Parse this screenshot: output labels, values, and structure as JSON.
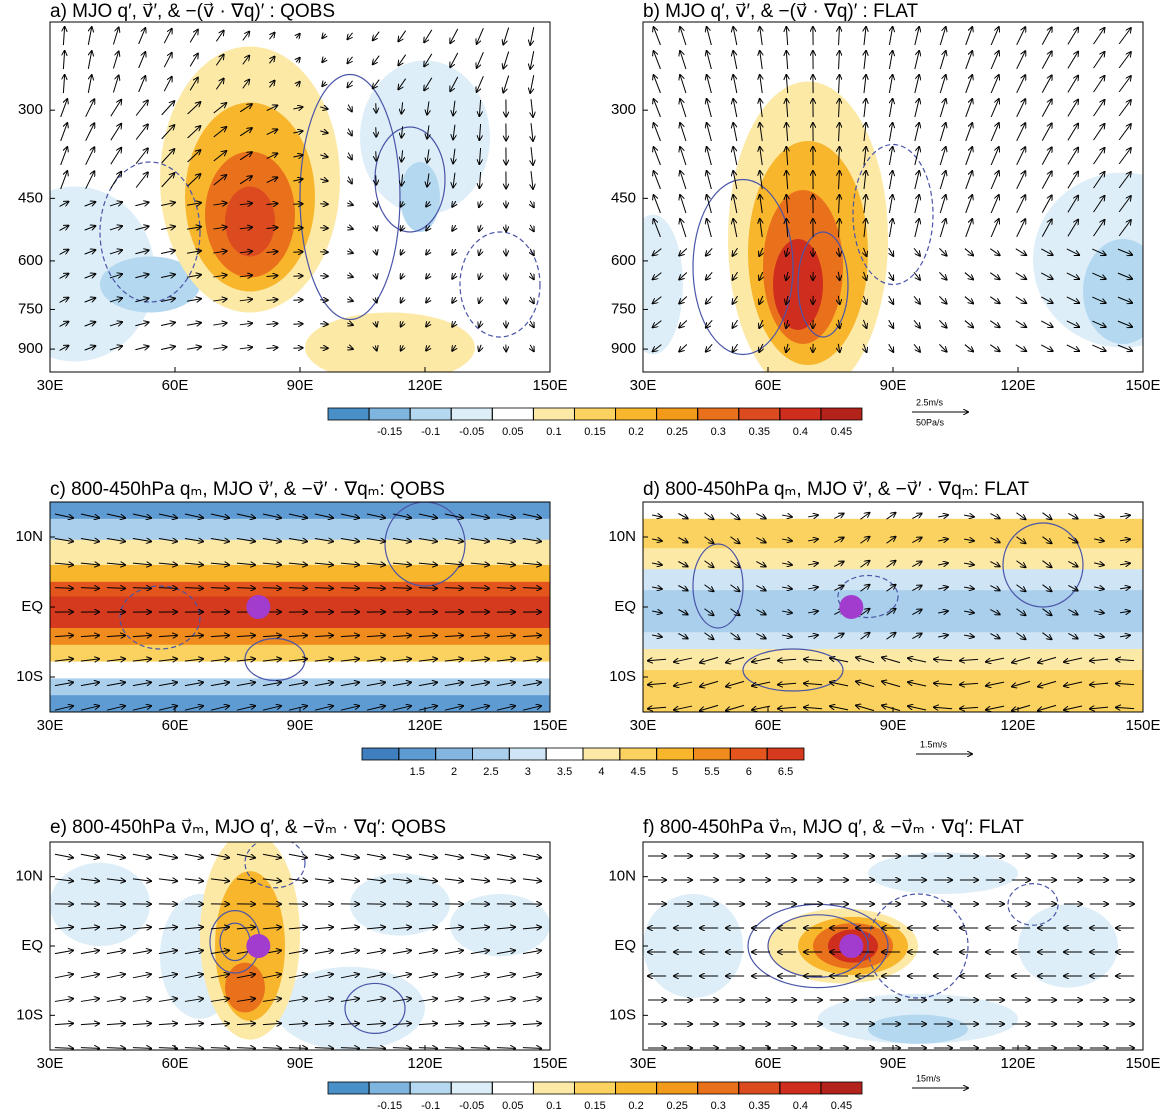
{
  "panels": [
    {
      "title": "a) MJO q′, v⃗′, & −(v⃗ · ∇q)′ : QOBS",
      "xlim": [
        30,
        150
      ],
      "xticks": [
        {
          "value": 30,
          "label": "30E"
        },
        {
          "value": 60,
          "label": "60E"
        },
        {
          "value": 90,
          "label": "90E"
        },
        {
          "value": 120,
          "label": "120E"
        },
        {
          "value": 150,
          "label": "150E"
        }
      ],
      "ylim": [
        1000,
        200
      ],
      "y_scale": "log",
      "yticks": [
        300,
        450,
        600,
        750,
        900
      ]
    },
    {
      "title": "b) MJO q′, v⃗′, & −(v⃗ · ∇q)′ : FLAT",
      "xlim": [
        30,
        150
      ],
      "xticks": [
        {
          "value": 30,
          "label": "30E"
        },
        {
          "value": 60,
          "label": "60E"
        },
        {
          "value": 90,
          "label": "90E"
        },
        {
          "value": 120,
          "label": "120E"
        },
        {
          "value": 150,
          "label": "150E"
        }
      ],
      "ylim": [
        1000,
        200
      ],
      "y_scale": "log",
      "yticks": [
        300,
        450,
        600,
        750,
        900
      ]
    },
    {
      "title": "c) 800-450hPa qₘ, MJO v⃗′, & −v⃗′ · ∇qₘ: QOBS",
      "xlim": [
        30,
        150
      ],
      "xticks": [
        {
          "value": 30,
          "label": "30E"
        },
        {
          "value": 60,
          "label": "60E"
        },
        {
          "value": 90,
          "label": "90E"
        },
        {
          "value": 120,
          "label": "120E"
        },
        {
          "value": 150,
          "label": "150E"
        }
      ],
      "ylim": [
        -15,
        15
      ],
      "y_scale": "linear",
      "yticks": [
        {
          "value": 10,
          "label": "10N"
        },
        {
          "value": 0,
          "label": "EQ"
        },
        {
          "value": -10,
          "label": "10S"
        }
      ]
    },
    {
      "title": "d) 800-450hPa qₘ, MJO v⃗′, & −v⃗′ · ∇qₘ: FLAT",
      "xlim": [
        30,
        150
      ],
      "xticks": [
        {
          "value": 30,
          "label": "30E"
        },
        {
          "value": 60,
          "label": "60E"
        },
        {
          "value": 90,
          "label": "90E"
        },
        {
          "value": 120,
          "label": "120E"
        },
        {
          "value": 150,
          "label": "150E"
        }
      ],
      "ylim": [
        -15,
        15
      ],
      "y_scale": "linear",
      "yticks": [
        {
          "value": 10,
          "label": "10N"
        },
        {
          "value": 0,
          "label": "EQ"
        },
        {
          "value": -10,
          "label": "10S"
        }
      ]
    },
    {
      "title": "e) 800-450hPa v⃗ₘ, MJO q′, & −v⃗ₘ · ∇q′: QOBS",
      "xlim": [
        30,
        150
      ],
      "xticks": [
        {
          "value": 30,
          "label": "30E"
        },
        {
          "value": 60,
          "label": "60E"
        },
        {
          "value": 90,
          "label": "90E"
        },
        {
          "value": 120,
          "label": "120E"
        },
        {
          "value": 150,
          "label": "150E"
        }
      ],
      "ylim": [
        -15,
        15
      ],
      "y_scale": "linear",
      "yticks": [
        {
          "value": 10,
          "label": "10N"
        },
        {
          "value": 0,
          "label": "EQ"
        },
        {
          "value": -10,
          "label": "10S"
        }
      ]
    },
    {
      "title": "f) 800-450hPa v⃗ₘ, MJO q′, & −v⃗ₘ · ∇q′: FLAT",
      "xlim": [
        30,
        150
      ],
      "xticks": [
        {
          "value": 30,
          "label": "30E"
        },
        {
          "value": 60,
          "label": "60E"
        },
        {
          "value": 90,
          "label": "90E"
        },
        {
          "value": 120,
          "label": "120E"
        },
        {
          "value": 150,
          "label": "150E"
        }
      ],
      "ylim": [
        -15,
        15
      ],
      "y_scale": "linear",
      "yticks": [
        {
          "value": 10,
          "label": "10N"
        },
        {
          "value": 0,
          "label": "EQ"
        },
        {
          "value": -10,
          "label": "10S"
        }
      ]
    }
  ],
  "colorbars": [
    {
      "levels": [
        -0.15,
        -0.1,
        -0.05,
        0.05,
        0.1,
        0.15,
        0.2,
        0.25,
        0.3,
        0.35,
        0.4,
        0.45
      ],
      "colors": [
        "#4a90c8",
        "#7db5de",
        "#b3d8ef",
        "#ddeef8",
        "#ffffff",
        "#fde9a6",
        "#fbd25f",
        "#f8b62d",
        "#f39a1b",
        "#e9711c",
        "#dc4a1f",
        "#cf2e1e",
        "#b4221c"
      ]
    },
    {
      "levels": [
        1.5,
        2,
        2.5,
        3,
        3.5,
        4,
        4.5,
        5,
        5.5,
        6,
        6.5
      ],
      "colors": [
        "#3f7fc0",
        "#5e9bd2",
        "#84b6e0",
        "#a9cfec",
        "#cfe5f5",
        "#ffffff",
        "#fde9a6",
        "#fbd25f",
        "#f8b62d",
        "#f08c1d",
        "#e3551d",
        "#d53a1e"
      ]
    },
    {
      "levels": [
        -0.15,
        -0.1,
        -0.05,
        0.05,
        0.1,
        0.15,
        0.2,
        0.25,
        0.3,
        0.35,
        0.4,
        0.45
      ],
      "colors": [
        "#4a90c8",
        "#7db5de",
        "#b3d8ef",
        "#ddeef8",
        "#ffffff",
        "#fde9a6",
        "#fbd25f",
        "#f8b62d",
        "#f39a1b",
        "#e9711c",
        "#dc4a1f",
        "#cf2e1e",
        "#b4221c"
      ]
    }
  ],
  "reference_vectors": [
    {
      "labels": [
        "2.5m/s",
        "50Pa/s"
      ]
    },
    {
      "labels": [
        "1.5m/s"
      ]
    },
    {
      "labels": [
        "15m/s"
      ]
    }
  ]
}
